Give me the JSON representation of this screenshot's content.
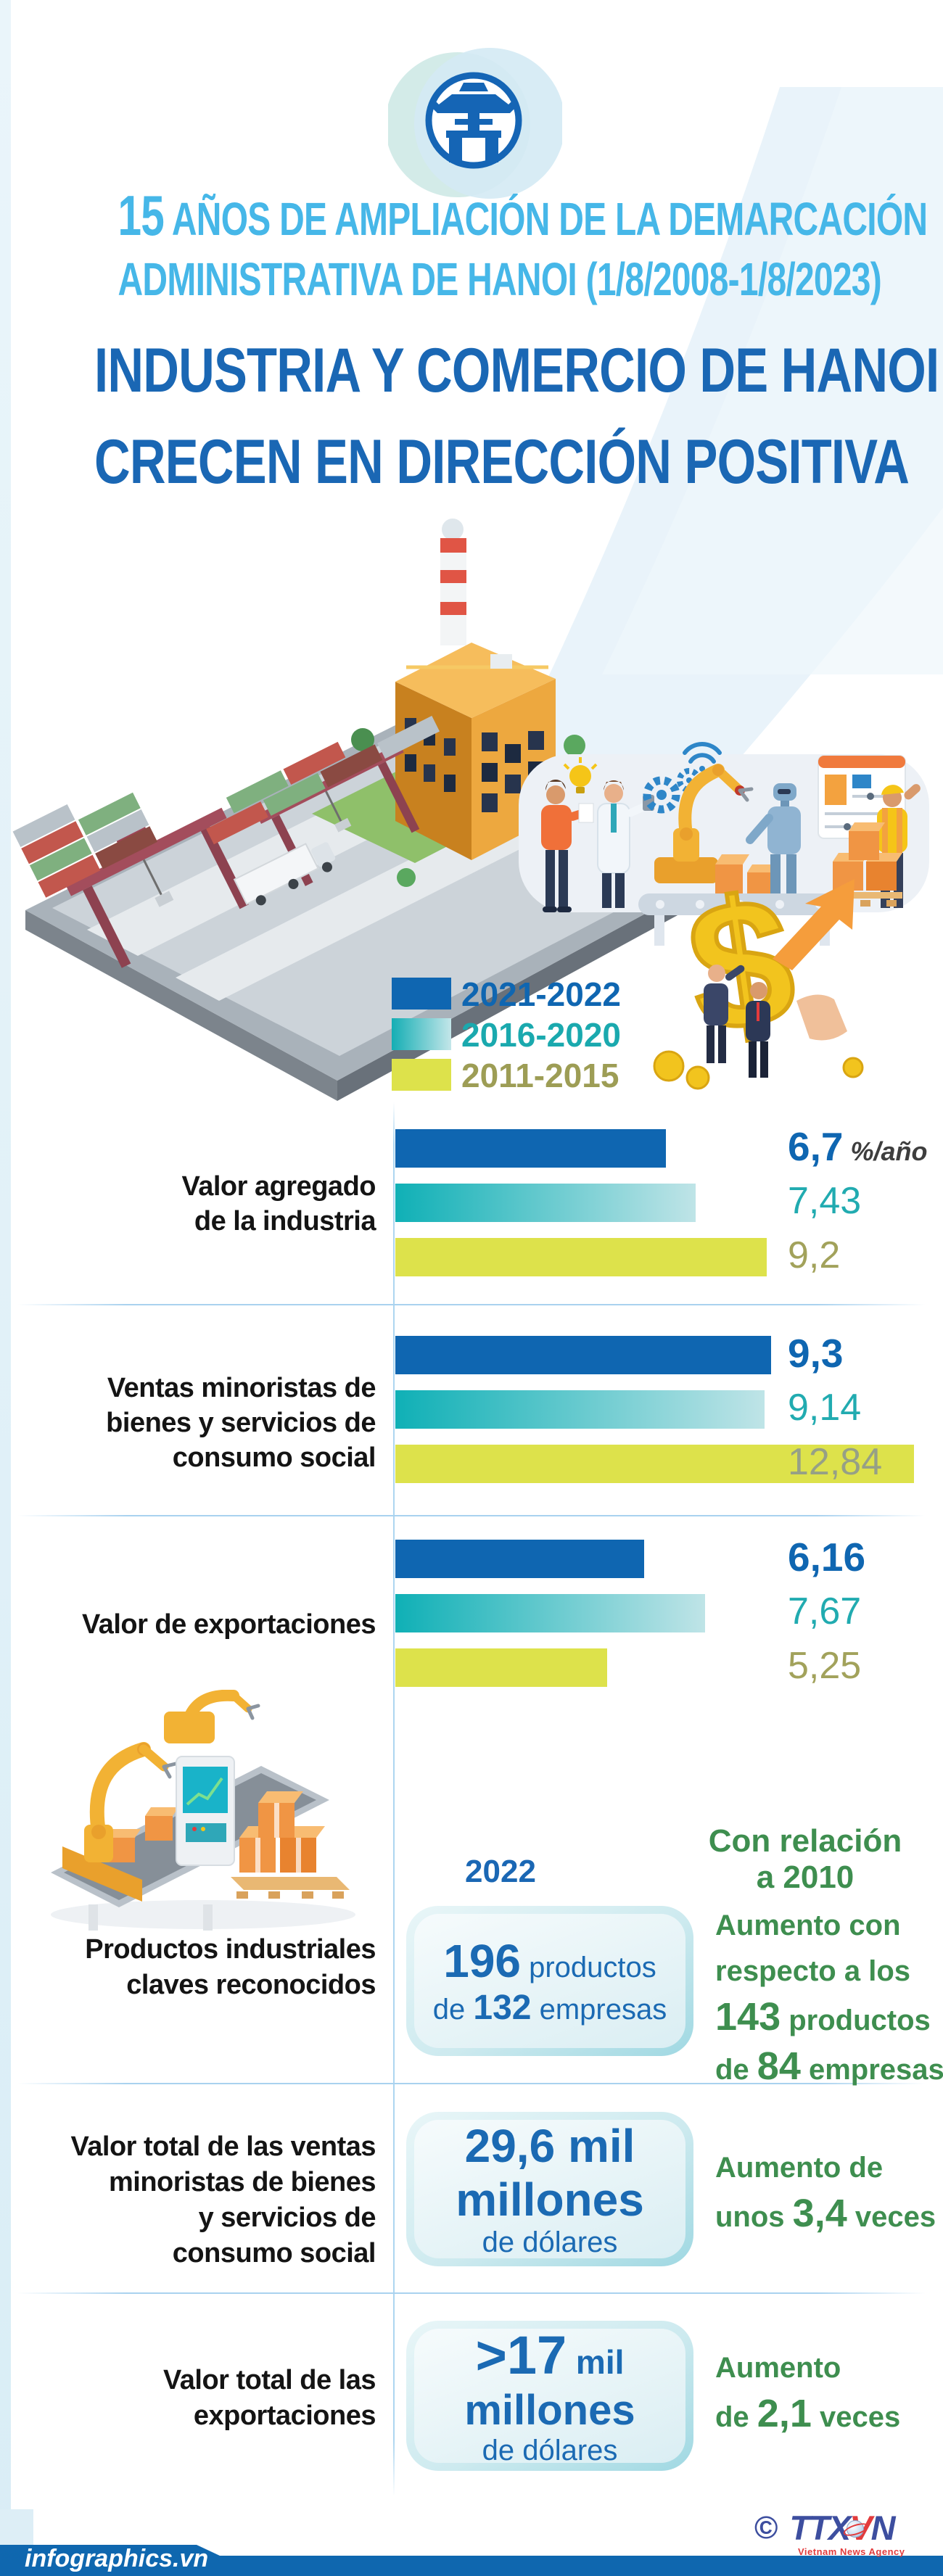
{
  "header": {
    "emblem": "hanoi-khue-van-cac-emblem",
    "kicker": {
      "big": "15",
      "line1_rest": " AÑOS DE AMPLIACIÓN DE LA DEMARCACIÓN",
      "line2": "ADMINISTRATIVA DE HANOI (1/8/2008-1/8/2023)"
    },
    "title": {
      "line1": "INDUSTRIA Y COMERCIO DE HANOI",
      "line2": "CRECEN EN DIRECCIÓN POSITIVA"
    }
  },
  "legend": {
    "items": [
      {
        "label": "2021-2022",
        "color": "#0f66b1",
        "text_color": "#0f66b1"
      },
      {
        "label": "2016-2020",
        "color": "#14aeb4",
        "text_color": "#1aa9ae"
      },
      {
        "label": "2011-2015",
        "color": "#dde24b",
        "text_color": "#9d9d55"
      }
    ]
  },
  "chart_data": {
    "type": "bar",
    "orientation": "horizontal",
    "unit": "%/año",
    "title": "Crecimiento promedio anual",
    "categories": [
      "Valor agregado de la industria",
      "Ventas minoristas de bienes y servicios de consumo social",
      "Valor de exportaciones"
    ],
    "series": [
      {
        "name": "2021-2022",
        "values": [
          6.7,
          9.3,
          6.16
        ]
      },
      {
        "name": "2016-2020",
        "values": [
          7.43,
          9.14,
          7.67
        ]
      },
      {
        "name": "2011-2015",
        "values": [
          9.2,
          12.84,
          5.25
        ]
      }
    ],
    "groups": [
      {
        "label_lines": [
          "Valor agregado",
          "de la industria"
        ],
        "values": [
          6.7,
          7.43,
          9.2
        ],
        "display": [
          "6,7",
          "7,43",
          "9,2"
        ],
        "suffix": "%/año"
      },
      {
        "label_lines": [
          "Ventas minoristas de",
          "bienes y servicios de",
          "consumo social"
        ],
        "values": [
          9.3,
          9.14,
          12.84
        ],
        "display": [
          "9,3",
          "9,14",
          "12,84"
        ]
      },
      {
        "label_lines": [
          "Valor de exportaciones"
        ],
        "values": [
          6.16,
          7.67,
          5.25
        ],
        "display": [
          "6,16",
          "7,67",
          "5,25"
        ]
      }
    ],
    "legend_position": "top",
    "grid": false
  },
  "comparison": {
    "header_2022": "2022",
    "header_2010_lines": [
      "Con relación",
      "a 2010"
    ],
    "rows": [
      {
        "label_lines": [
          "Productos industriales",
          "claves reconocidos"
        ],
        "box_lines": [
          [
            {
              "t": "196",
              "s": "b-xl"
            },
            {
              "t": " productos",
              "s": "b-md"
            }
          ],
          [
            {
              "t": "de ",
              "s": "b-md"
            },
            {
              "t": "132",
              "s": "b-num2"
            },
            {
              "t": " empresas",
              "s": "b-md"
            }
          ]
        ],
        "green_lines": [
          [
            {
              "t": "Aumento con",
              "s": "g-md"
            }
          ],
          [
            {
              "t": "respecto a los",
              "s": "g-md"
            }
          ],
          [
            {
              "t": "143",
              "s": "g-num"
            },
            {
              "t": " productos",
              "s": "g-md"
            }
          ],
          [
            {
              "t": "de ",
              "s": "g-md"
            },
            {
              "t": "84",
              "s": "g-num"
            },
            {
              "t": " empresas",
              "s": "g-md"
            }
          ]
        ]
      },
      {
        "label_lines": [
          "Valor total de las ventas",
          "minoristas de bienes",
          "y servicios de",
          "consumo social"
        ],
        "box_lines": [
          [
            {
              "t": "29,6 mil",
              "s": "b-xl"
            }
          ],
          [
            {
              "t": "millones",
              "s": "b-xl"
            }
          ],
          [
            {
              "t": "de dólares",
              "s": "b-md"
            }
          ]
        ],
        "green_lines": [
          [
            {
              "t": "Aumento de",
              "s": "g-md"
            }
          ],
          [
            {
              "t": "unos ",
              "s": "g-md"
            },
            {
              "t": "3,4",
              "s": "g-num"
            },
            {
              "t": " veces",
              "s": "g-md"
            }
          ]
        ]
      },
      {
        "label_lines": [
          "Valor total de las",
          "exportaciones"
        ],
        "box_lines": [
          [
            {
              "t": ">17",
              "s": "b-xxl"
            },
            {
              "t": " mil",
              "s": "b-mil"
            }
          ],
          [
            {
              "t": "millones",
              "s": "b-xl2"
            }
          ],
          [
            {
              "t": "de dólares",
              "s": "b-md"
            }
          ]
        ],
        "green_lines": [
          [
            {
              "t": "Aumento",
              "s": "g-md"
            }
          ],
          [
            {
              "t": "de ",
              "s": "g-md"
            },
            {
              "t": "2,1",
              "s": "g-num"
            },
            {
              "t": " veces",
              "s": "g-md"
            }
          ]
        ]
      }
    ]
  },
  "footer": {
    "site": "infographics.vn",
    "copyright": "©",
    "logo_ttx": "TTX",
    "logo_v": "V",
    "logo_n": "N",
    "agency": "Vietnam News Agency"
  },
  "illustration": {
    "dollar_glyph": "$",
    "names": [
      "factory-port-illustration",
      "smart-factory-illustration",
      "dollar-growth-illustration",
      "robotic-packaging-illustration",
      "wifi-icon",
      "lightbulb-icon",
      "gears-icon"
    ]
  },
  "colors": {
    "kicker_blue": "#46b7e8",
    "title_blue": "#1a67b4",
    "bar_blue": "#0f66b1",
    "bar_teal": "#14aeb4",
    "bar_yellow": "#dde24b",
    "green_text": "#3e8e4f",
    "footer_blue": "#0f67af",
    "logo_navy": "#3d4e9f",
    "logo_red": "#e23b3c"
  }
}
